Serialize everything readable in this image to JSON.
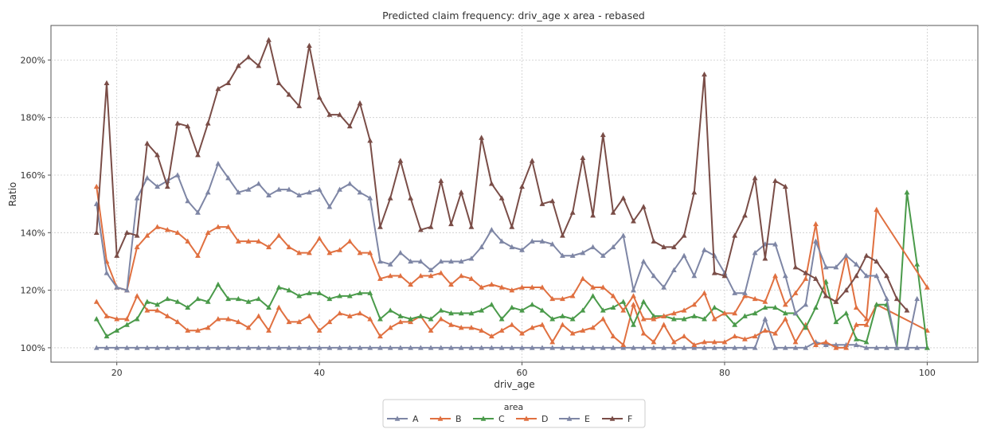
{
  "chart_data": {
    "type": "line",
    "title": "Predicted claim frequency: driv_age x area - rebased",
    "xlabel": "driv_age",
    "ylabel": "Ratio",
    "xlim": [
      13.5,
      105
    ],
    "ylim": [
      95,
      212
    ],
    "xticks": [
      20,
      40,
      60,
      80,
      100
    ],
    "xtick_labels": [
      "20",
      "40",
      "60",
      "80",
      "100"
    ],
    "yticks": [
      100,
      120,
      140,
      160,
      180,
      200
    ],
    "ytick_labels": [
      "100%",
      "120%",
      "140%",
      "160%",
      "180%",
      "200%"
    ],
    "grid": true,
    "marker": "triangle-up",
    "legend": {
      "title": "area",
      "placement": "bottom-center",
      "ncol": 6
    },
    "series": [
      {
        "name": "A",
        "color": "#7e86a5",
        "x": [
          18,
          19,
          20,
          21,
          22,
          23,
          24,
          25,
          26,
          27,
          28,
          29,
          30,
          31,
          32,
          33,
          34,
          35,
          36,
          37,
          38,
          39,
          40,
          41,
          42,
          43,
          44,
          45,
          46,
          47,
          48,
          49,
          50,
          51,
          52,
          53,
          54,
          55,
          56,
          57,
          58,
          59,
          60,
          61,
          62,
          63,
          64,
          65,
          66,
          67,
          68,
          69,
          70,
          71,
          72,
          73,
          74,
          75,
          76,
          77,
          78,
          79,
          80,
          81,
          82,
          83,
          84,
          85,
          86,
          87,
          88,
          89,
          90,
          91,
          92,
          93,
          94,
          95,
          96,
          97,
          98,
          99,
          100
        ],
        "values": [
          100,
          100,
          100,
          100,
          100,
          100,
          100,
          100,
          100,
          100,
          100,
          100,
          100,
          100,
          100,
          100,
          100,
          100,
          100,
          100,
          100,
          100,
          100,
          100,
          100,
          100,
          100,
          100,
          100,
          100,
          100,
          100,
          100,
          100,
          100,
          100,
          100,
          100,
          100,
          100,
          100,
          100,
          100,
          100,
          100,
          100,
          100,
          100,
          100,
          100,
          100,
          100,
          100,
          100,
          100,
          100,
          100,
          100,
          100,
          100,
          100,
          100,
          100,
          100,
          100,
          100,
          110,
          100,
          100,
          100,
          100,
          102,
          101,
          101,
          101,
          101,
          100,
          100,
          100,
          100,
          100,
          100,
          100
        ]
      },
      {
        "name": "B",
        "color": "#e07040",
        "x": [
          18,
          19,
          20,
          21,
          22,
          23,
          24,
          25,
          26,
          27,
          28,
          29,
          30,
          31,
          32,
          33,
          34,
          35,
          36,
          37,
          38,
          39,
          40,
          41,
          42,
          43,
          44,
          45,
          46,
          47,
          48,
          49,
          50,
          51,
          52,
          53,
          54,
          55,
          56,
          57,
          58,
          59,
          60,
          61,
          62,
          63,
          64,
          65,
          66,
          67,
          68,
          69,
          70,
          71,
          72,
          73,
          74,
          75,
          76,
          77,
          78,
          79,
          80,
          81,
          82,
          83,
          84,
          85,
          86,
          87,
          88,
          89,
          90,
          91,
          92,
          93,
          94,
          95,
          100
        ],
        "values": [
          116,
          111,
          110,
          110,
          118,
          113,
          113,
          111,
          109,
          106,
          106,
          107,
          110,
          110,
          109,
          107,
          111,
          106,
          114,
          109,
          109,
          111,
          106,
          109,
          112,
          111,
          112,
          110,
          104,
          107,
          109,
          109,
          111,
          106,
          110,
          108,
          107,
          107,
          106,
          104,
          106,
          108,
          105,
          107,
          108,
          102,
          108,
          105,
          106,
          107,
          110,
          104,
          101,
          115,
          105,
          102,
          108,
          102,
          104,
          101,
          102,
          102,
          102,
          104,
          103,
          104,
          106,
          105,
          110,
          102,
          108,
          101,
          102,
          100,
          100,
          108,
          108,
          115,
          106
        ]
      },
      {
        "name": "C",
        "color": "#4a9a4a",
        "x": [
          18,
          19,
          20,
          21,
          22,
          23,
          24,
          25,
          26,
          27,
          28,
          29,
          30,
          31,
          32,
          33,
          34,
          35,
          36,
          37,
          38,
          39,
          40,
          41,
          42,
          43,
          44,
          45,
          46,
          47,
          48,
          49,
          50,
          51,
          52,
          53,
          54,
          55,
          56,
          57,
          58,
          59,
          60,
          61,
          62,
          63,
          64,
          65,
          66,
          67,
          68,
          69,
          70,
          71,
          72,
          73,
          74,
          75,
          76,
          77,
          78,
          79,
          80,
          81,
          82,
          83,
          84,
          85,
          86,
          87,
          88,
          89,
          90,
          91,
          92,
          93,
          94,
          95,
          96,
          97,
          98,
          99,
          100
        ],
        "values": [
          110,
          104,
          106,
          108,
          110,
          116,
          115,
          117,
          116,
          114,
          117,
          116,
          122,
          117,
          117,
          116,
          117,
          114,
          121,
          120,
          118,
          119,
          119,
          117,
          118,
          118,
          119,
          119,
          110,
          113,
          111,
          110,
          111,
          110,
          113,
          112,
          112,
          112,
          113,
          115,
          110,
          114,
          113,
          115,
          113,
          110,
          111,
          110,
          113,
          118,
          113,
          114,
          116,
          108,
          116,
          111,
          111,
          110,
          110,
          111,
          110,
          114,
          112,
          108,
          111,
          112,
          114,
          114,
          112,
          112,
          107,
          114,
          123,
          109,
          112,
          103,
          102,
          115,
          115,
          100,
          154,
          129,
          100
        ]
      },
      {
        "name": "D",
        "color": "#e07040",
        "x": [
          18,
          19,
          20,
          21,
          22,
          23,
          24,
          25,
          26,
          27,
          28,
          29,
          30,
          31,
          32,
          33,
          34,
          35,
          36,
          37,
          38,
          39,
          40,
          41,
          42,
          43,
          44,
          45,
          46,
          47,
          48,
          49,
          50,
          51,
          52,
          53,
          54,
          55,
          56,
          57,
          58,
          59,
          60,
          61,
          62,
          63,
          64,
          65,
          66,
          67,
          68,
          69,
          70,
          71,
          72,
          73,
          74,
          75,
          76,
          77,
          78,
          79,
          80,
          81,
          82,
          83,
          84,
          85,
          86,
          87,
          88,
          89,
          90,
          91,
          92,
          93,
          94,
          95,
          100
        ],
        "values": [
          156,
          130,
          121,
          120,
          135,
          139,
          142,
          141,
          140,
          137,
          132,
          140,
          142,
          142,
          137,
          137,
          137,
          135,
          139,
          135,
          133,
          133,
          138,
          133,
          134,
          137,
          133,
          133,
          124,
          125,
          125,
          122,
          125,
          125,
          126,
          122,
          125,
          124,
          121,
          122,
          121,
          120,
          121,
          121,
          121,
          117,
          117,
          118,
          124,
          121,
          121,
          118,
          113,
          118,
          110,
          110,
          111,
          112,
          113,
          115,
          119,
          110,
          112,
          112,
          118,
          117,
          116,
          125,
          115,
          119,
          124,
          143,
          118,
          116,
          132,
          114,
          110,
          148,
          121
        ]
      },
      {
        "name": "E",
        "color": "#7e86a5",
        "x": [
          18,
          19,
          20,
          21,
          22,
          23,
          24,
          25,
          26,
          27,
          28,
          29,
          30,
          31,
          32,
          33,
          34,
          35,
          36,
          37,
          38,
          39,
          40,
          41,
          42,
          43,
          44,
          45,
          46,
          47,
          48,
          49,
          50,
          51,
          52,
          53,
          54,
          55,
          56,
          57,
          58,
          59,
          60,
          61,
          62,
          63,
          64,
          65,
          66,
          67,
          68,
          69,
          70,
          71,
          72,
          73,
          74,
          75,
          76,
          77,
          78,
          79,
          80,
          81,
          82,
          83,
          84,
          85,
          86,
          87,
          88,
          89,
          90,
          91,
          92,
          93,
          94,
          95,
          96,
          97,
          98,
          99
        ],
        "values": [
          150,
          126,
          121,
          120,
          152,
          159,
          156,
          158,
          160,
          151,
          147,
          154,
          164,
          159,
          154,
          155,
          157,
          153,
          155,
          155,
          153,
          154,
          155,
          149,
          155,
          157,
          154,
          152,
          130,
          129,
          133,
          130,
          130,
          127,
          130,
          130,
          130,
          131,
          135,
          141,
          137,
          135,
          134,
          137,
          137,
          136,
          132,
          132,
          133,
          135,
          132,
          135,
          139,
          120,
          130,
          125,
          121,
          127,
          132,
          125,
          134,
          132,
          126,
          119,
          119,
          133,
          136,
          136,
          125,
          112,
          115,
          137,
          128,
          128,
          132,
          129,
          125,
          125,
          117,
          100,
          100,
          117
        ]
      },
      {
        "name": "F",
        "color": "#7a4d47",
        "x": [
          18,
          19,
          20,
          21,
          22,
          23,
          24,
          25,
          26,
          27,
          28,
          29,
          30,
          31,
          32,
          33,
          34,
          35,
          36,
          37,
          38,
          39,
          40,
          41,
          42,
          43,
          44,
          45,
          46,
          47,
          48,
          49,
          50,
          51,
          52,
          53,
          54,
          55,
          56,
          57,
          58,
          59,
          60,
          61,
          62,
          63,
          64,
          65,
          66,
          67,
          68,
          69,
          70,
          71,
          72,
          73,
          74,
          75,
          76,
          77,
          78,
          79,
          80,
          81,
          82,
          83,
          84,
          85,
          86,
          87,
          88,
          89,
          90,
          91,
          92,
          93,
          94,
          95,
          96,
          97,
          98
        ],
        "values": [
          140,
          192,
          132,
          140,
          139,
          171,
          167,
          156,
          178,
          177,
          167,
          178,
          190,
          192,
          198,
          201,
          198,
          207,
          192,
          188,
          184,
          205,
          187,
          181,
          181,
          177,
          185,
          172,
          142,
          152,
          165,
          152,
          141,
          142,
          158,
          143,
          154,
          142,
          173,
          157,
          152,
          142,
          156,
          165,
          150,
          151,
          139,
          147,
          166,
          146,
          174,
          147,
          152,
          144,
          149,
          137,
          135,
          135,
          139,
          154,
          195,
          126,
          125,
          139,
          146,
          159,
          131,
          158,
          156,
          128,
          126,
          124,
          118,
          116,
          120,
          125,
          132,
          130,
          125,
          117,
          113
        ]
      }
    ]
  }
}
